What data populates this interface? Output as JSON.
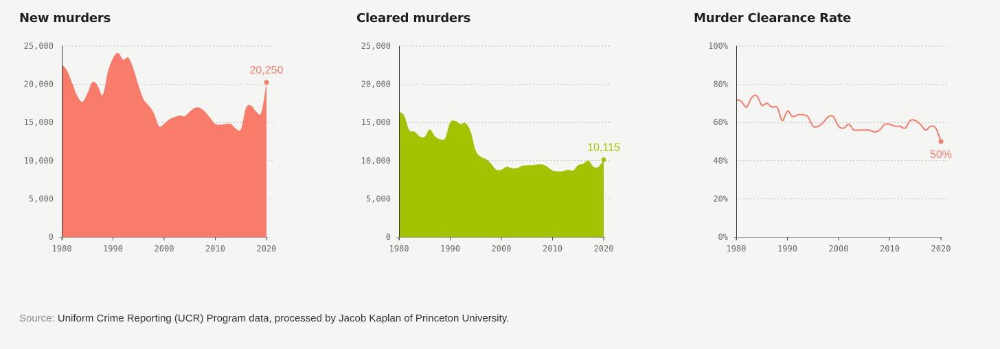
{
  "chart_data": [
    {
      "type": "area",
      "title": "New murders",
      "color": "#f97c6b",
      "x": [
        1980,
        1981,
        1982,
        1983,
        1984,
        1985,
        1986,
        1987,
        1988,
        1989,
        1990,
        1991,
        1992,
        1993,
        1994,
        1995,
        1996,
        1997,
        1998,
        1999,
        2000,
        2001,
        2002,
        2003,
        2004,
        2005,
        2006,
        2007,
        2008,
        2009,
        2010,
        2011,
        2012,
        2013,
        2014,
        2015,
        2016,
        2017,
        2018,
        2019,
        2020
      ],
      "y": [
        22600,
        21800,
        20200,
        18500,
        17700,
        18800,
        20300,
        19800,
        18600,
        21600,
        23400,
        24100,
        23200,
        23500,
        22000,
        19800,
        18000,
        17200,
        16200,
        14500,
        14800,
        15400,
        15700,
        15900,
        15800,
        16400,
        16900,
        16900,
        16400,
        15600,
        14800,
        14700,
        14800,
        14800,
        14200,
        14100,
        16900,
        17200,
        16400,
        16300,
        20250
      ],
      "ylim": [
        0,
        25000
      ],
      "yticks": [
        0,
        5000,
        10000,
        15000,
        20000,
        25000
      ],
      "ytick_labels": [
        "0",
        "5,000",
        "10,000",
        "15,000",
        "20,000",
        "25,000"
      ],
      "xticks": [
        1980,
        1990,
        2000,
        2010,
        2020
      ],
      "xtick_labels": [
        "1980",
        "1990",
        "2000",
        "2010",
        "2020"
      ],
      "end_label": "20,250",
      "grid": "dashed-horizontal"
    },
    {
      "type": "area",
      "title": "Cleared murders",
      "color": "#a5c200",
      "x": [
        1980,
        1981,
        1982,
        1983,
        1984,
        1985,
        1986,
        1987,
        1988,
        1989,
        1990,
        1991,
        1992,
        1993,
        1994,
        1995,
        1996,
        1997,
        1998,
        1999,
        2000,
        2001,
        2002,
        2003,
        2004,
        2005,
        2006,
        2007,
        2008,
        2009,
        2010,
        2011,
        2012,
        2013,
        2014,
        2015,
        2016,
        2017,
        2018,
        2019,
        2020
      ],
      "y": [
        16400,
        15900,
        14000,
        13800,
        13200,
        13100,
        14100,
        13200,
        12800,
        12900,
        15000,
        15200,
        14800,
        14900,
        13800,
        11300,
        10500,
        10200,
        9600,
        8800,
        8800,
        9200,
        9000,
        9000,
        9300,
        9400,
        9400,
        9500,
        9500,
        9200,
        8700,
        8600,
        8600,
        8800,
        8700,
        9400,
        9600,
        10000,
        9200,
        9200,
        10115
      ],
      "ylim": [
        0,
        25000
      ],
      "yticks": [
        0,
        5000,
        10000,
        15000,
        20000,
        25000
      ],
      "ytick_labels": [
        "0",
        "5,000",
        "10,000",
        "15,000",
        "20,000",
        "25,000"
      ],
      "xticks": [
        1980,
        1990,
        2000,
        2010,
        2020
      ],
      "xtick_labels": [
        "1980",
        "1990",
        "2000",
        "2010",
        "2020"
      ],
      "end_label": "10,115",
      "grid": "dashed-horizontal"
    },
    {
      "type": "line",
      "title": "Murder Clearance Rate",
      "color": "#f97c6b",
      "x": [
        1980,
        1981,
        1982,
        1983,
        1984,
        1985,
        1986,
        1987,
        1988,
        1989,
        1990,
        1991,
        1992,
        1993,
        1994,
        1995,
        1996,
        1997,
        1998,
        1999,
        2000,
        2001,
        2002,
        2003,
        2004,
        2005,
        2006,
        2007,
        2008,
        2009,
        2010,
        2011,
        2012,
        2013,
        2014,
        2015,
        2016,
        2017,
        2018,
        2019,
        2020
      ],
      "y": [
        72,
        71,
        68,
        73,
        74,
        69,
        70,
        68,
        68,
        61,
        66,
        63,
        64,
        64,
        63,
        58,
        58,
        60,
        63,
        63,
        58,
        57,
        59,
        56,
        56,
        56,
        56,
        55,
        56,
        59,
        59,
        58,
        58,
        57,
        61,
        61,
        59,
        56,
        58,
        57,
        50
      ],
      "ylim": [
        0,
        100
      ],
      "yticks": [
        0,
        20,
        40,
        60,
        80,
        100
      ],
      "ytick_labels": [
        "0%",
        "20%",
        "40%",
        "60%",
        "80%",
        "100%"
      ],
      "xticks": [
        1980,
        1990,
        2000,
        2010,
        2020
      ],
      "xtick_labels": [
        "1980",
        "1990",
        "2000",
        "2010",
        "2020"
      ],
      "end_label": "50%",
      "grid": "dashed-horizontal"
    }
  ],
  "source": {
    "prefix": "Source:",
    "text": " Uniform Crime Reporting (UCR) Program data, processed by Jacob Kaplan of Princeton University."
  }
}
